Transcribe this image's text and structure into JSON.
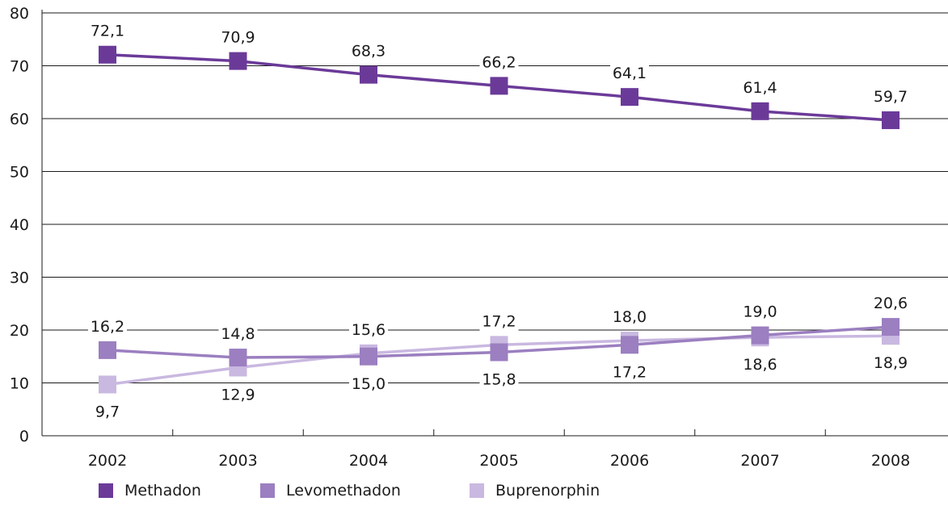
{
  "chart_data": {
    "type": "line",
    "title": "",
    "xlabel": "",
    "ylabel": "",
    "categories": [
      "2002",
      "2003",
      "2004",
      "2005",
      "2006",
      "2007",
      "2008"
    ],
    "ylim": [
      0,
      80
    ],
    "yticks": [
      0,
      10,
      20,
      30,
      40,
      50,
      60,
      70,
      80
    ],
    "grid": true,
    "legend_position": "bottom-left",
    "series": [
      {
        "name": "Methadon",
        "color": "#6b3a99",
        "values": [
          72.1,
          70.9,
          68.3,
          66.2,
          64.1,
          61.4,
          59.7
        ],
        "labels": [
          "72,1",
          "70,9",
          "68,3",
          "66,2",
          "64,1",
          "61,4",
          "59,7"
        ],
        "label_side": [
          "above",
          "above",
          "above",
          "above",
          "above",
          "above",
          "above"
        ]
      },
      {
        "name": "Levomethadon",
        "color": "#9b7fc0",
        "values": [
          16.2,
          14.8,
          15.0,
          15.8,
          17.2,
          19.0,
          20.6
        ],
        "labels": [
          "16,2",
          "14,8",
          "15,0",
          "15,8",
          "17,2",
          "19,0",
          "20,6"
        ],
        "label_side": [
          "above",
          "above",
          "below",
          "below",
          "below",
          "above",
          "above"
        ]
      },
      {
        "name": "Buprenorphin",
        "color": "#c9b8e0",
        "values": [
          9.7,
          12.9,
          15.6,
          17.2,
          18.0,
          18.6,
          18.9
        ],
        "labels": [
          "9,7",
          "12,9",
          "15,6",
          "17,2",
          "18,0",
          "18,6",
          "18,9"
        ],
        "label_side": [
          "below",
          "below",
          "above",
          "above",
          "above",
          "below",
          "below"
        ]
      }
    ]
  }
}
